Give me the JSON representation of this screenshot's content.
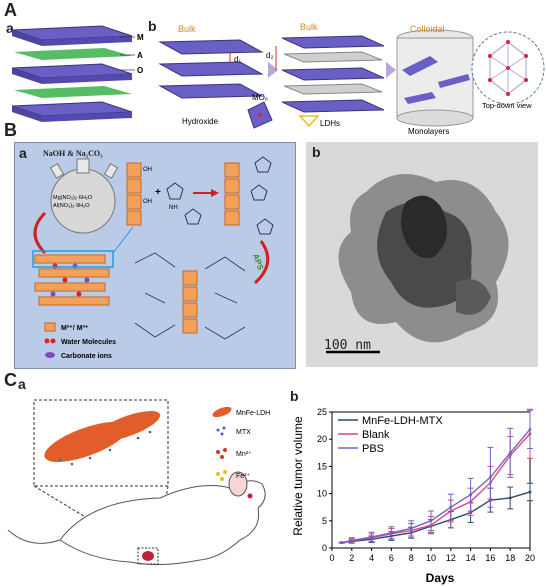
{
  "panelA": {
    "label": "A",
    "sub_a": "a",
    "sub_b": "b",
    "layer_labels": [
      "M",
      "A",
      "O"
    ],
    "bulk1": "Bulk",
    "bulk2": "Bulk",
    "colloidal": "Colloidal",
    "d1": "d₁",
    "d2": "d₂",
    "mo6": "MO₆",
    "hydroxide": "Hydroxide",
    "ldhs": "LDHs",
    "monolayers": "Monolayers",
    "topdown": "Top-down view"
  },
  "panelB": {
    "label": "B",
    "sub_a": "a",
    "sub_b": "b",
    "reagent": "NaOH & Na₂CO₃",
    "flask_line1": "Mg(NO₃)₂·6H₂O",
    "flask_line2": "Al(NO₃)₃·9H₂O",
    "aps": "APS",
    "oh": "OH",
    "nh": "NH",
    "legend": [
      "M²⁺/ M³⁺",
      "Water Molecules",
      "Carbonate ions"
    ],
    "scalebar": "100 nm"
  },
  "panelC": {
    "label": "C",
    "sub_a": "a",
    "sub_b": "b",
    "legend": [
      "MnFe-LDH",
      "MTX",
      "Mn²⁺",
      "Fe³⁺"
    ]
  },
  "chart_data": {
    "type": "line",
    "xlabel": "Days",
    "ylabel": "Relative tumor volume",
    "xlim": [
      0,
      20
    ],
    "ylim": [
      0,
      25
    ],
    "xticks": [
      0,
      2,
      4,
      6,
      8,
      10,
      12,
      14,
      16,
      18,
      20
    ],
    "yticks": [
      0,
      5,
      10,
      15,
      20,
      25
    ],
    "legend_position": "top-left",
    "series": [
      {
        "name": "MnFe-LDH-MTX",
        "color": "#2d4a6e",
        "x": [
          1,
          2,
          4,
          6,
          8,
          10,
          12,
          14,
          16,
          18,
          20
        ],
        "y": [
          1.0,
          1.2,
          1.6,
          2.2,
          2.8,
          4.0,
          5.2,
          6.5,
          8.8,
          9.2,
          10.3
        ],
        "err": [
          0.1,
          0.3,
          0.6,
          0.8,
          1.0,
          1.2,
          1.5,
          1.8,
          2.2,
          2.0,
          1.6
        ]
      },
      {
        "name": "Blank",
        "color": "#d9478f",
        "x": [
          1,
          2,
          4,
          6,
          8,
          10,
          12,
          14,
          16,
          18,
          20
        ],
        "y": [
          1.0,
          1.3,
          1.9,
          2.6,
          3.2,
          4.2,
          6.8,
          8.5,
          12.0,
          17.0,
          21.0
        ],
        "err": [
          0.1,
          0.4,
          0.7,
          1.0,
          1.3,
          1.6,
          2.0,
          2.5,
          3.0,
          3.5,
          4.5
        ]
      },
      {
        "name": "PBS",
        "color": "#7a5fc0",
        "x": [
          1,
          2,
          4,
          6,
          8,
          10,
          12,
          14,
          16,
          18,
          20
        ],
        "y": [
          1.0,
          1.4,
          2.0,
          2.8,
          3.6,
          5.0,
          7.5,
          9.8,
          13.0,
          17.5,
          21.8
        ],
        "err": [
          0.1,
          0.5,
          0.9,
          1.1,
          1.4,
          1.8,
          2.4,
          3.0,
          5.5,
          4.5,
          3.5
        ]
      }
    ]
  }
}
